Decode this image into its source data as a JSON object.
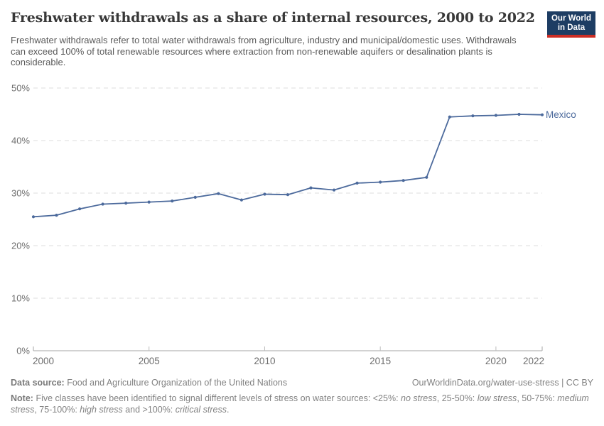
{
  "header": {
    "title": "Freshwater withdrawals as a share of internal resources, 2000 to 2022",
    "subtitle": "Freshwater withdrawals refer to total water withdrawals from agriculture, industry and municipal/domestic uses. Withdrawals can exceed 100% of total renewable resources where extraction from non-renewable aquifers or desalination plants is considerable.",
    "logo": {
      "line1": "Our World",
      "line2": "in Data",
      "bg_color": "#1d3d63",
      "accent_color": "#cc2d24"
    }
  },
  "chart_data": {
    "type": "line",
    "title": "Freshwater withdrawals as a share of internal resources, 2000 to 2022",
    "xlabel": "",
    "ylabel": "",
    "xlim": [
      2000,
      2022
    ],
    "ylim": [
      0,
      50
    ],
    "grid": "horizontal-dashed",
    "legend_position": "end-of-line-label",
    "xticks": [
      2000,
      2005,
      2010,
      2015,
      2020,
      2022
    ],
    "yticks": [
      0,
      10,
      20,
      30,
      40,
      50
    ],
    "ytick_suffix": "%",
    "series": [
      {
        "name": "Mexico",
        "color": "#4C6A9C",
        "x": [
          2000,
          2001,
          2002,
          2003,
          2004,
          2005,
          2006,
          2007,
          2008,
          2009,
          2010,
          2011,
          2012,
          2013,
          2014,
          2015,
          2016,
          2017,
          2018,
          2019,
          2020,
          2021,
          2022
        ],
        "values": [
          25.5,
          25.8,
          27.0,
          27.9,
          28.1,
          28.3,
          28.5,
          29.2,
          29.9,
          28.7,
          29.8,
          29.7,
          31.0,
          30.6,
          31.9,
          32.1,
          32.4,
          33.0,
          44.5,
          44.7,
          44.8,
          45.0,
          44.9
        ]
      }
    ]
  },
  "footer": {
    "datasource_label": "Data source:",
    "datasource": "Food and Agriculture Organization of the United Nations",
    "link": "OurWorldinData.org/water-use-stress | CC BY",
    "note_label": "Note:",
    "note_parts": [
      {
        "t": "Five classes have been identified to signal different levels of stress on water sources: <25%: ",
        "i": false
      },
      {
        "t": "no stress",
        "i": true
      },
      {
        "t": ", 25-50%: ",
        "i": false
      },
      {
        "t": "low stress",
        "i": true
      },
      {
        "t": ", 50-75%: ",
        "i": false
      },
      {
        "t": "medium stress",
        "i": true
      },
      {
        "t": ", 75-100%: ",
        "i": false
      },
      {
        "t": "high stress",
        "i": true
      },
      {
        "t": " and >100%: ",
        "i": false
      },
      {
        "t": "critical stress",
        "i": true
      },
      {
        "t": ".",
        "i": false
      }
    ]
  }
}
